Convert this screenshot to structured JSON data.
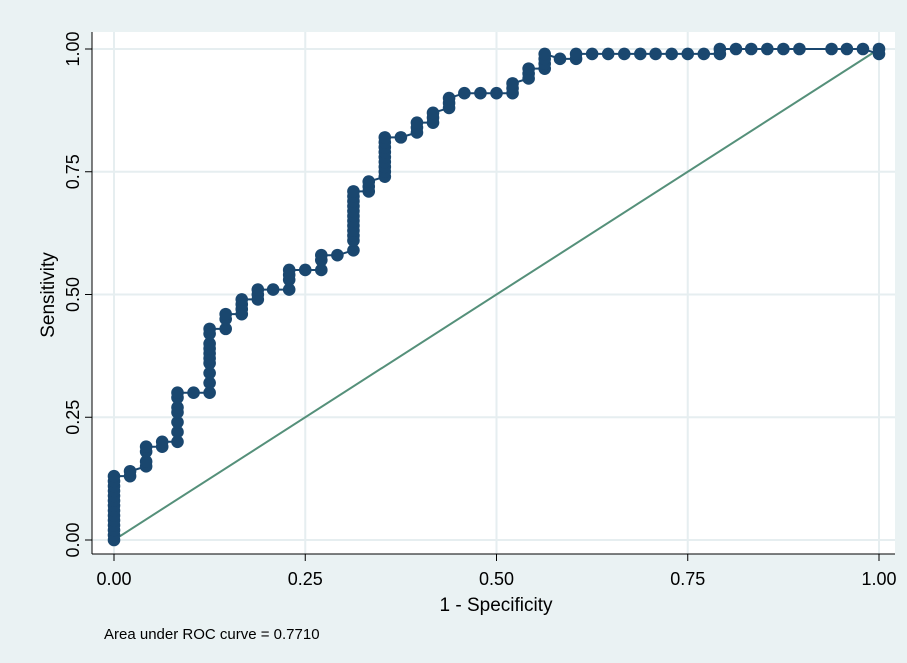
{
  "chart_data": {
    "type": "line",
    "title": "",
    "xlabel": "1 - Specificity",
    "ylabel": "Sensitivity",
    "xlim": [
      0,
      1
    ],
    "ylim": [
      0,
      1
    ],
    "xticks": [
      "0.00",
      "0.25",
      "0.50",
      "0.75",
      "1.00"
    ],
    "xtick_values": [
      0,
      0.25,
      0.5,
      0.75,
      1
    ],
    "yticks": [
      "0.00",
      "0.25",
      "0.50",
      "0.75",
      "1.00"
    ],
    "ytick_values": [
      0,
      0.25,
      0.5,
      0.75,
      1
    ],
    "grid": true,
    "note": "Area under ROC curve = 0.7710",
    "colors": {
      "outer_background": "#eaf2f3",
      "plot_background": "#ffffff",
      "grid": "#e6eef0",
      "roc_curve": "#1a476f",
      "reference_line": "#55907a"
    },
    "series": [
      {
        "marker": "circle",
        "x": [
          0.0,
          0.0,
          0.0,
          0.0,
          0.0,
          0.0,
          0.0,
          0.0,
          0.0,
          0.0,
          0.0,
          0.0,
          0.0,
          0.0,
          0.021,
          0.021,
          0.042,
          0.042,
          0.042,
          0.042,
          0.063,
          0.063,
          0.083,
          0.083,
          0.083,
          0.083,
          0.083,
          0.083,
          0.083,
          0.104,
          0.125,
          0.125,
          0.125,
          0.125,
          0.125,
          0.125,
          0.125,
          0.125,
          0.125,
          0.125,
          0.146,
          0.146,
          0.146,
          0.167,
          0.167,
          0.167,
          0.167,
          0.188,
          0.188,
          0.188,
          0.208,
          0.229,
          0.229,
          0.229,
          0.229,
          0.25,
          0.271,
          0.271,
          0.271,
          0.292,
          0.313,
          0.313,
          0.313,
          0.313,
          0.313,
          0.313,
          0.313,
          0.313,
          0.313,
          0.313,
          0.313,
          0.313,
          0.333,
          0.333,
          0.333,
          0.354,
          0.354,
          0.354,
          0.354,
          0.354,
          0.354,
          0.354,
          0.354,
          0.354,
          0.375,
          0.396,
          0.396,
          0.396,
          0.417,
          0.417,
          0.417,
          0.438,
          0.438,
          0.438,
          0.458,
          0.479,
          0.5,
          0.521,
          0.521,
          0.521,
          0.542,
          0.542,
          0.542,
          0.563,
          0.563,
          0.563,
          0.563,
          0.583,
          0.604,
          0.604,
          0.625,
          0.646,
          0.667,
          0.688,
          0.708,
          0.729,
          0.75,
          0.771,
          0.792,
          0.792,
          0.813,
          0.833,
          0.854,
          0.875,
          0.896,
          0.938,
          0.958,
          0.979,
          1.0,
          1.0
        ],
        "y": [
          0.0,
          0.01,
          0.02,
          0.03,
          0.04,
          0.05,
          0.06,
          0.07,
          0.08,
          0.09,
          0.1,
          0.11,
          0.12,
          0.13,
          0.13,
          0.14,
          0.15,
          0.16,
          0.18,
          0.19,
          0.19,
          0.2,
          0.2,
          0.22,
          0.24,
          0.26,
          0.27,
          0.29,
          0.3,
          0.3,
          0.3,
          0.32,
          0.34,
          0.36,
          0.37,
          0.38,
          0.39,
          0.4,
          0.42,
          0.43,
          0.43,
          0.45,
          0.46,
          0.46,
          0.47,
          0.48,
          0.49,
          0.49,
          0.5,
          0.51,
          0.51,
          0.51,
          0.53,
          0.54,
          0.55,
          0.55,
          0.55,
          0.57,
          0.58,
          0.58,
          0.59,
          0.61,
          0.62,
          0.63,
          0.64,
          0.65,
          0.66,
          0.67,
          0.68,
          0.69,
          0.7,
          0.71,
          0.71,
          0.72,
          0.73,
          0.74,
          0.75,
          0.76,
          0.77,
          0.78,
          0.79,
          0.8,
          0.81,
          0.82,
          0.82,
          0.83,
          0.84,
          0.85,
          0.85,
          0.86,
          0.87,
          0.88,
          0.89,
          0.9,
          0.91,
          0.91,
          0.91,
          0.91,
          0.92,
          0.93,
          0.94,
          0.95,
          0.96,
          0.96,
          0.97,
          0.98,
          0.99,
          0.98,
          0.98,
          0.99,
          0.99,
          0.99,
          0.99,
          0.99,
          0.99,
          0.99,
          0.99,
          0.99,
          0.99,
          1.0,
          1.0,
          1.0,
          1.0,
          1.0,
          1.0,
          1.0,
          1.0,
          1.0,
          0.99,
          1.0
        ]
      },
      {
        "line": "reference",
        "x": [
          0,
          1
        ],
        "y": [
          0,
          1
        ]
      }
    ]
  }
}
